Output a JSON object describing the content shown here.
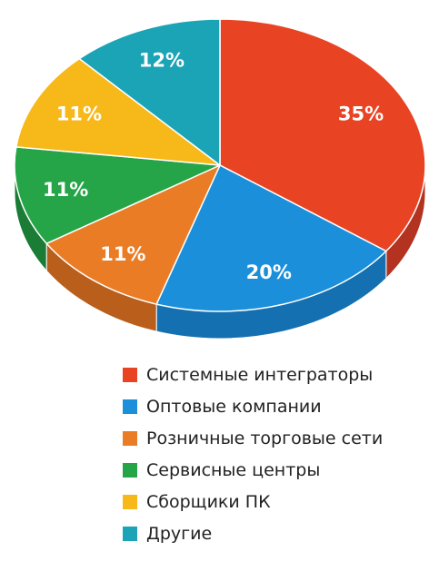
{
  "chart_data": {
    "type": "pie",
    "categories": [
      "Системные интеграторы",
      "Оптовые компании",
      "Розничные торговые сети",
      "Сервисные центры",
      "Сборщики ПК",
      "Другие"
    ],
    "values": [
      35,
      20,
      11,
      11,
      11,
      12
    ],
    "data_labels": [
      "35%",
      "20%",
      "11%",
      "11%",
      "11%",
      "12%"
    ],
    "colors": [
      "#e84424",
      "#1b8fda",
      "#ea7c26",
      "#25a547",
      "#f7b91a",
      "#1ba4b6"
    ],
    "side_colors": [
      "#b33220",
      "#1470b0",
      "#b95e1b",
      "#1a7c35",
      "#c48f10",
      "#137e8c"
    ],
    "legend_position": "bottom",
    "style": "3d"
  }
}
